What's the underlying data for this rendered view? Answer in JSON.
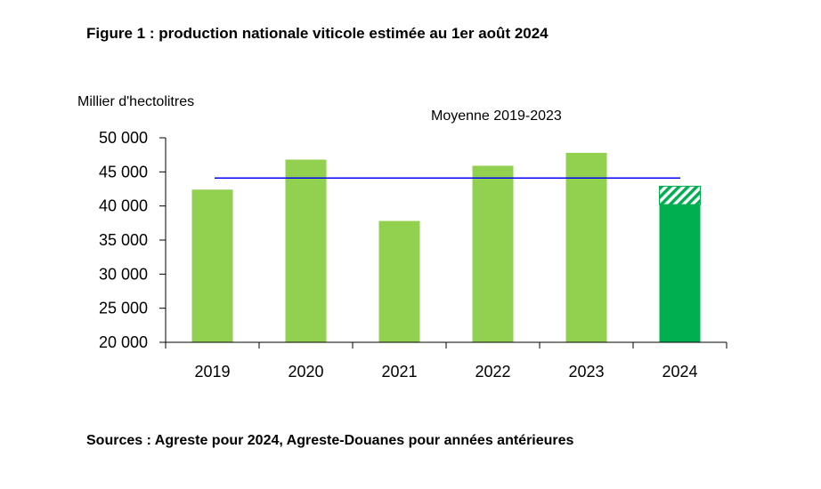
{
  "title": "Figure 1 : production nationale viticole estimée au 1er août 2024",
  "source": "Sources : Agreste pour 2024, Agreste-Douanes pour années antérieures",
  "chart_data": {
    "type": "bar",
    "ylabel": "Millier d'hectolitres",
    "categories": [
      "2019",
      "2020",
      "2021",
      "2022",
      "2023",
      "2024"
    ],
    "series": [
      {
        "values": [
          42400,
          46800,
          37800,
          45900,
          47800,
          40200
        ]
      }
    ],
    "range_2024": {
      "low": 40200,
      "high": 42900
    },
    "average_line": {
      "label": "Moyenne 2019-2023",
      "value": 44100
    },
    "ylim": [
      20000,
      50000
    ],
    "yticks": [
      20000,
      25000,
      30000,
      35000,
      40000,
      45000,
      50000
    ],
    "ytick_labels": [
      "20 000",
      "25 000",
      "30 000",
      "35 000",
      "40 000",
      "45 000",
      "50 000"
    ],
    "colors": {
      "bar": "#92D050",
      "bar_2024": "#00B050",
      "average_line": "#0000FF",
      "axis": "#000000"
    },
    "grid": false,
    "legend": "none"
  }
}
